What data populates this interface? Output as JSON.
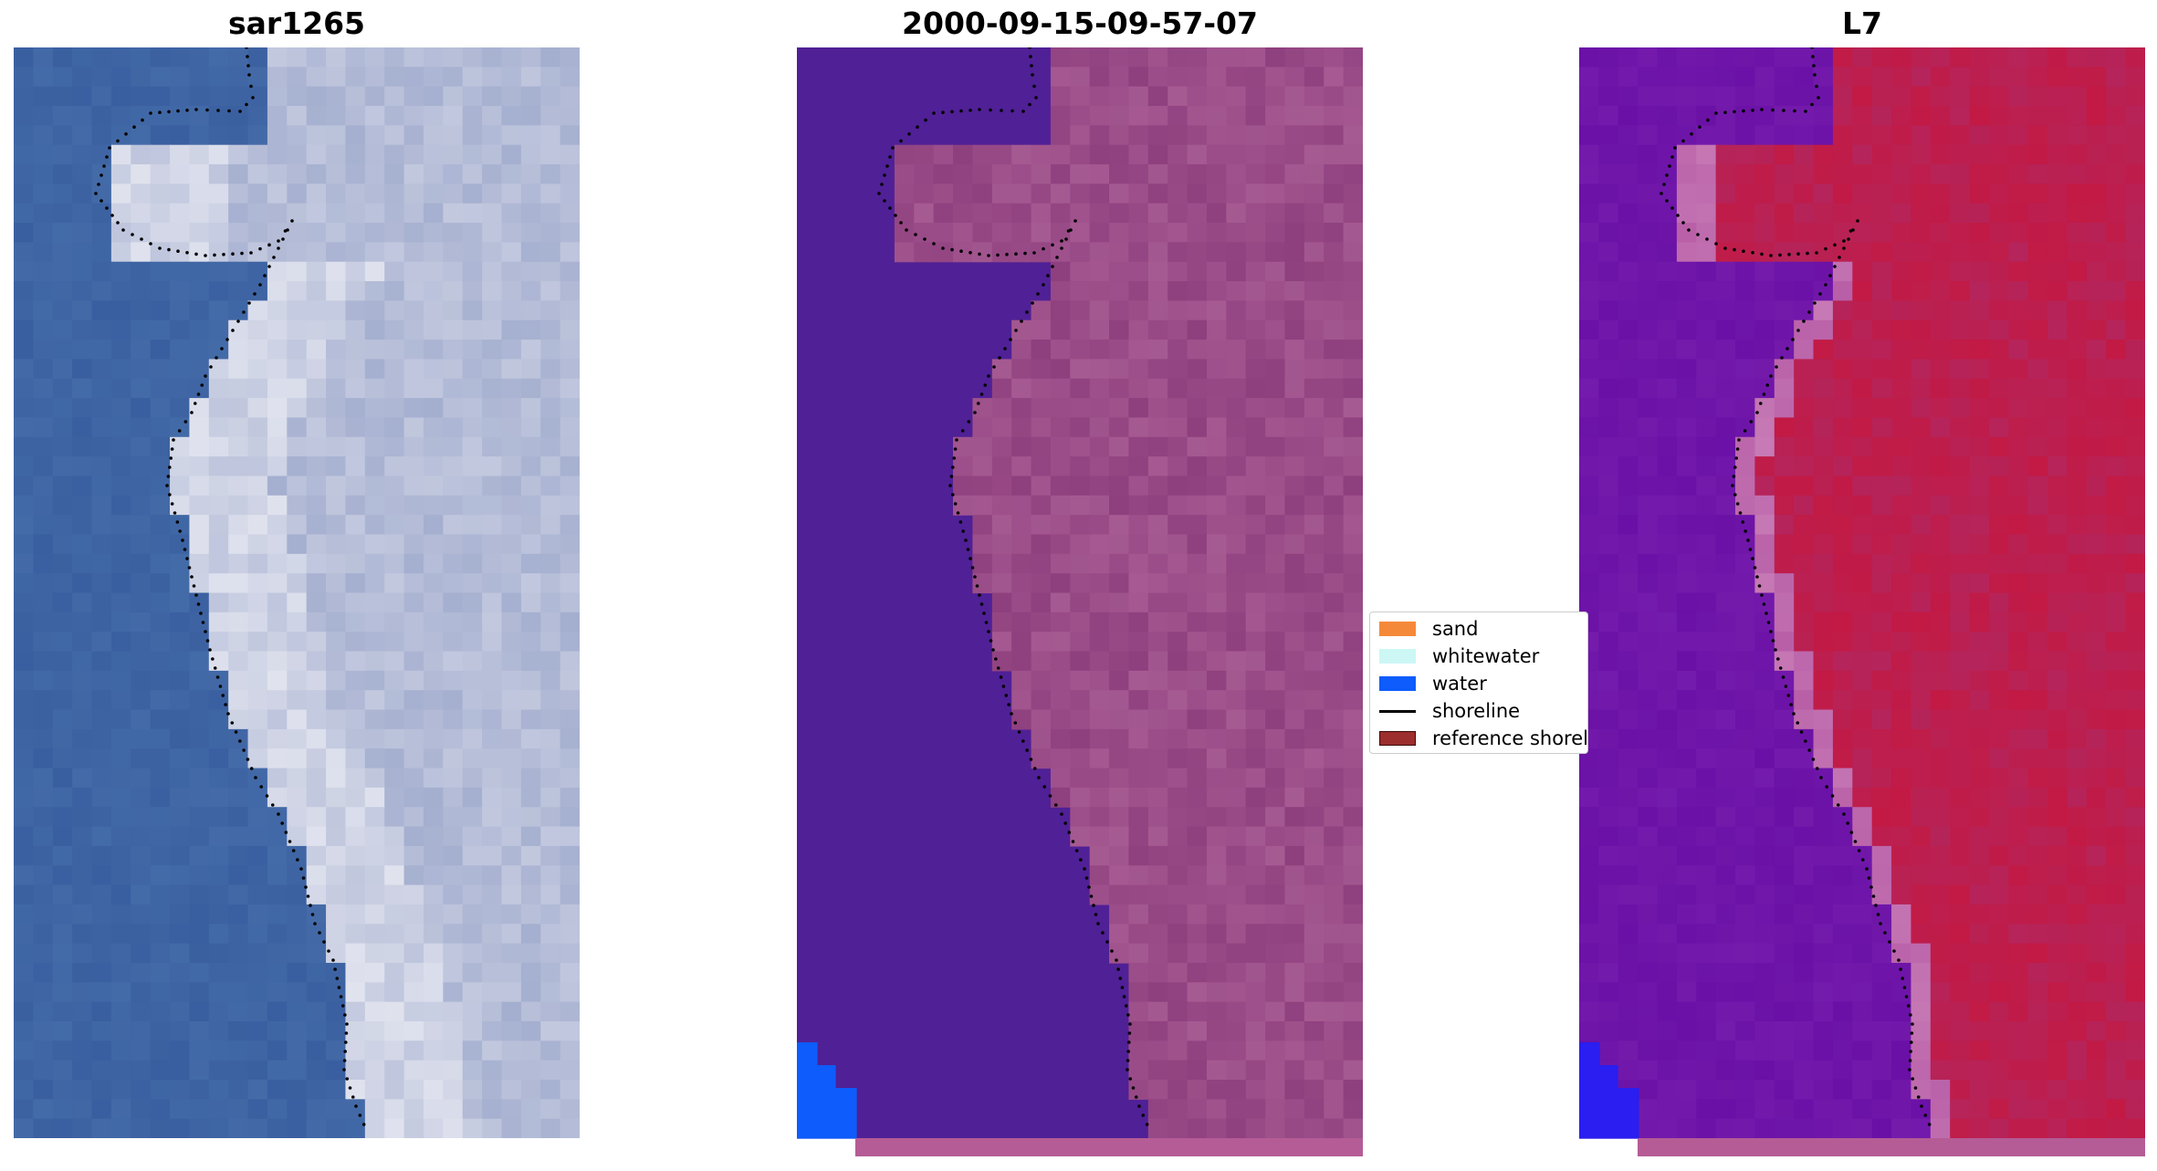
{
  "panels": [
    {
      "title": "sar1265"
    },
    {
      "title": "2000-09-15-09-57-07"
    },
    {
      "title": "L7"
    }
  ],
  "legend": {
    "items": [
      {
        "label": "sand",
        "color": "#f5893a"
      },
      {
        "label": "whitewater",
        "color": "#ccf7f5"
      },
      {
        "label": "water",
        "color": "#0d5cfb"
      },
      {
        "label": "shoreline",
        "color": "#000000",
        "kind": "line"
      },
      {
        "label": "reference shoreline",
        "color": "#9c2e2e",
        "kind": "patch"
      }
    ]
  },
  "colors": {
    "rgb_water": "#3a5fa0",
    "rgb_surf": "#e4e6f0",
    "class_water": "#502096",
    "class_land": "#a65a92",
    "class_water_px": "#0d5cfb",
    "ndwi_land": "#c21a45",
    "ndwi_water": "#6a10a6",
    "bottom_strip": "#b55c96"
  }
}
